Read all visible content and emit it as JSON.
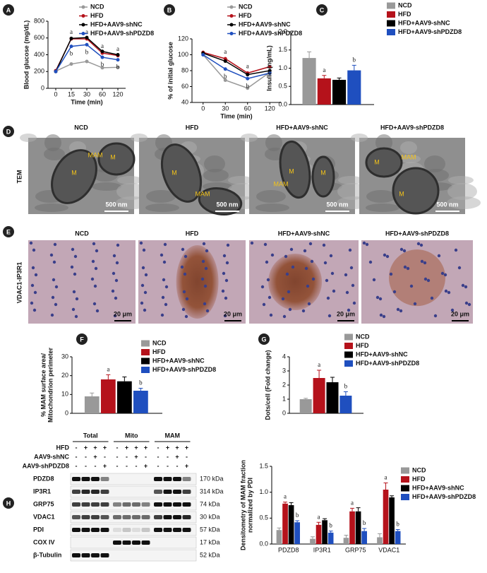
{
  "panel_letters": [
    "A",
    "B",
    "C",
    "D",
    "E",
    "F",
    "G",
    "H"
  ],
  "chart_data": [
    {
      "type": "line",
      "xlabel": "Time (min)",
      "ylabel": [
        "Blood glucose (mg/dL)"
      ],
      "categories": [
        0,
        15,
        30,
        60,
        120
      ],
      "ylim": [
        0,
        800
      ],
      "yticks": [
        0,
        200,
        400,
        600,
        800
      ],
      "series": [
        {
          "name": "NCD",
          "color": "#999999",
          "values": [
            205,
            290,
            320,
            245,
            250
          ]
        },
        {
          "name": "HFD",
          "color": "#b5121b",
          "values": [
            210,
            590,
            590,
            420,
            390
          ],
          "labels": [
            null,
            "a",
            "a",
            "a",
            "a"
          ]
        },
        {
          "name": "HFD+AAV9-shNC",
          "color": "#000000",
          "values": [
            200,
            595,
            605,
            440,
            400
          ]
        },
        {
          "name": "HFD+AAV9-shPDZD8",
          "color": "#1f4fbf",
          "values": [
            200,
            500,
            520,
            370,
            340
          ],
          "labels": [
            null,
            "b",
            "b",
            "b",
            "b"
          ]
        }
      ]
    },
    {
      "type": "line",
      "xlabel": "Time (min)",
      "ylabel": [
        "% of initial glucose"
      ],
      "categories": [
        0,
        30,
        60,
        120
      ],
      "ylim": [
        40,
        120
      ],
      "yticks": [
        40,
        60,
        80,
        100,
        120
      ],
      "series": [
        {
          "name": "NCD",
          "color": "#999999",
          "values": [
            100,
            68,
            58,
            78
          ]
        },
        {
          "name": "HFD",
          "color": "#b5121b",
          "values": [
            103,
            95,
            77,
            85
          ],
          "labels": [
            null,
            "a",
            "a",
            null
          ]
        },
        {
          "name": "HFD+AAV9-shNC",
          "color": "#000000",
          "values": [
            102,
            92,
            75,
            80
          ]
        },
        {
          "name": "HFD+AAV9-shPDZD8",
          "color": "#1f4fbf",
          "values": [
            100,
            82,
            70,
            77
          ],
          "labels": [
            null,
            "b",
            "b",
            null
          ]
        }
      ]
    },
    {
      "type": "bar",
      "ylabel": [
        "Insulin (ng/mL)"
      ],
      "ylim": [
        0,
        2
      ],
      "yticks": [
        {
          "value": 0,
          "label": "0.0"
        },
        {
          "value": 0.5,
          "label": "0.5"
        },
        {
          "value": 1,
          "label": "1.0"
        },
        {
          "value": 1.5,
          "label": "1.5"
        },
        {
          "value": 2,
          "label": "2.0"
        }
      ],
      "series": [
        {
          "name": "NCD",
          "color": "#999999",
          "values": [
            1.28
          ],
          "errors": [
            0.17
          ]
        },
        {
          "name": "HFD",
          "color": "#b5121b",
          "values": [
            0.72
          ],
          "errors": [
            0.08
          ],
          "labels": [
            "a"
          ]
        },
        {
          "name": "HFD+AAV9-shNC",
          "color": "#000000",
          "values": [
            0.68
          ],
          "errors": [
            0.05
          ]
        },
        {
          "name": "HFD+AAV9-shPDZD8",
          "color": "#1f4fbf",
          "values": [
            0.94
          ],
          "errors": [
            0.14
          ],
          "labels": [
            "b"
          ]
        }
      ]
    },
    {
      "type": "bar",
      "ylabel": [
        "% MAM surface area/",
        "Mitochondrion perimeter"
      ],
      "ylim": [
        0,
        30
      ],
      "yticks": [
        0,
        10,
        20,
        30
      ],
      "series": [
        {
          "name": "NCD",
          "color": "#999999",
          "values": [
            9
          ],
          "errors": [
            1.8
          ]
        },
        {
          "name": "HFD",
          "color": "#b5121b",
          "values": [
            18
          ],
          "errors": [
            2.5
          ],
          "labels": [
            "a"
          ]
        },
        {
          "name": "HFD+AAV9-shNC",
          "color": "#000000",
          "values": [
            17
          ],
          "errors": [
            2.3
          ]
        },
        {
          "name": "HFD+AAV9-shPDZD8",
          "color": "#1f4fbf",
          "values": [
            12
          ],
          "errors": [
            1.3
          ],
          "labels": [
            "b"
          ]
        }
      ]
    },
    {
      "type": "bar",
      "ylabel": [
        "Dots/cell (Fold change)"
      ],
      "ylim": [
        0,
        4
      ],
      "yticks": [
        0,
        1,
        2,
        3,
        4
      ],
      "series": [
        {
          "name": "NCD",
          "color": "#999999",
          "values": [
            1.0
          ],
          "errors": [
            0.06
          ]
        },
        {
          "name": "HFD",
          "color": "#b5121b",
          "values": [
            2.5
          ],
          "errors": [
            0.55
          ],
          "labels": [
            "a"
          ]
        },
        {
          "name": "HFD+AAV9-shNC",
          "color": "#000000",
          "values": [
            2.2
          ],
          "errors": [
            0.35
          ]
        },
        {
          "name": "HFD+AAV9-shPDZD8",
          "color": "#1f4fbf",
          "values": [
            1.25
          ],
          "errors": [
            0.28
          ],
          "labels": [
            "b"
          ]
        }
      ]
    },
    {
      "type": "bar",
      "ylabel": [
        "Densitometry of MAM fraction",
        "normalized by PDI"
      ],
      "categories": [
        "PDZD8",
        "IP3R1",
        "GRP75",
        "VDAC1"
      ],
      "ylim": [
        0,
        1.5
      ],
      "yticks": [
        {
          "value": 0,
          "label": "0.0"
        },
        {
          "value": 0.5,
          "label": "0.5"
        },
        {
          "value": 1,
          "label": "1.0"
        },
        {
          "value": 1.5,
          "label": "1.5"
        }
      ],
      "series": [
        {
          "name": "NCD",
          "color": "#999999",
          "values": [
            0.27,
            0.1,
            0.12,
            0.13
          ],
          "errors": [
            0.04,
            0.04,
            0.05,
            0.07
          ]
        },
        {
          "name": "HFD",
          "color": "#b5121b",
          "values": [
            0.78,
            0.37,
            0.63,
            1.05
          ],
          "errors": [
            0.03,
            0.05,
            0.06,
            0.13
          ],
          "labels": [
            "a",
            "a",
            "a",
            "a"
          ]
        },
        {
          "name": "HFD+AAV9-shNC",
          "color": "#000000",
          "values": [
            0.75,
            0.46,
            0.63,
            0.9
          ],
          "errors": [
            0.05,
            0.03,
            0.07,
            0.03
          ]
        },
        {
          "name": "HFD+AAV9-shPDZD8",
          "color": "#1f4fbf",
          "values": [
            0.42,
            0.22,
            0.25,
            0.25
          ],
          "errors": [
            0.03,
            0.03,
            0.05,
            0.03
          ],
          "labels": [
            "b",
            "b",
            "b",
            "b"
          ]
        }
      ]
    }
  ],
  "tem": {
    "label": "TEM",
    "titles": [
      "NCD",
      "HFD",
      "HFD+AAV9-shNC",
      "HFD+AAV9-shPDZD8"
    ],
    "scale_bar": "500 nm",
    "image_labels": [
      [
        "MAM",
        "M",
        "M"
      ],
      [
        "M",
        "MAM"
      ],
      [
        "MAM",
        "M",
        "M"
      ],
      [
        "M",
        "MAM",
        "M"
      ]
    ]
  },
  "ihc": {
    "label": "VDAC1-IP3R1",
    "titles": [
      "NCD",
      "HFD",
      "HFD+AAV9-shNC",
      "HFD+AAV9-shPDZD8"
    ],
    "scale_bar": "20 μm"
  },
  "blot": {
    "groups": [
      "Total",
      "Mito",
      "MAM"
    ],
    "conditions": [
      {
        "name": "HFD",
        "signs": [
          "-",
          "+",
          "+",
          "+",
          "-",
          "+",
          "+",
          "+",
          "-",
          "+",
          "+",
          "+"
        ]
      },
      {
        "name": "AAV9-shNC",
        "signs": [
          "-",
          "-",
          "+",
          "-",
          "-",
          "-",
          "+",
          "-",
          "-",
          "-",
          "+",
          "-"
        ]
      },
      {
        "name": "AAV9-shPDZD8",
        "signs": [
          "-",
          "-",
          "-",
          "+",
          "-",
          "-",
          "-",
          "+",
          "-",
          "-",
          "-",
          "+"
        ]
      }
    ],
    "proteins": [
      {
        "name": "PDZD8",
        "size": "170 kDa"
      },
      {
        "name": "IP3R1",
        "size": "314 kDa"
      },
      {
        "name": "GRP75",
        "size": "74 kDa"
      },
      {
        "name": "VDAC1",
        "size": "30 kDa"
      },
      {
        "name": "PDI",
        "size": "57 kDa"
      },
      {
        "name": "COX IV",
        "size": "17 kDa"
      },
      {
        "name": "β-Tubulin",
        "size": "52 kDa"
      }
    ]
  }
}
